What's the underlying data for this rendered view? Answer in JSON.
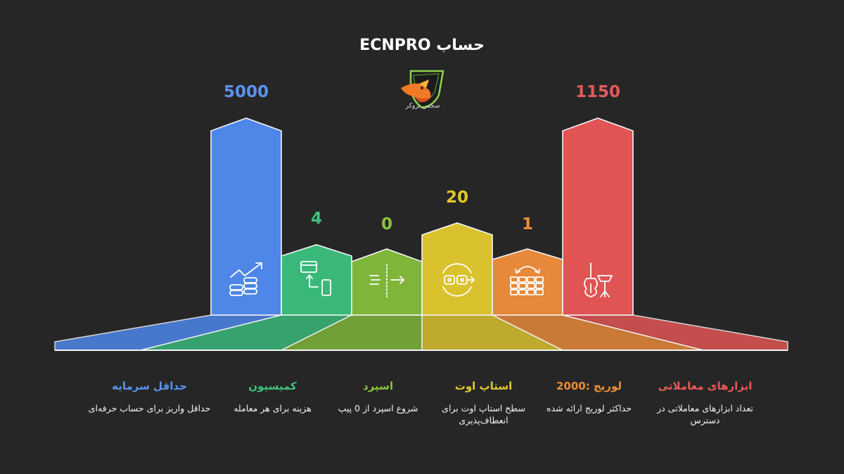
{
  "title": "حساب ECNPRO",
  "logo": {
    "text": "سجس بروکر",
    "icon": "fox-head-logo"
  },
  "items": [
    {
      "value": "5000",
      "color": "#4f87e8",
      "icon": "rising-coins-icon",
      "heading": "حداقل سرمایه",
      "desc": "حداقل واریز برای حساب حرفه‌ای"
    },
    {
      "value": "4",
      "color": "#3ab87a",
      "icon": "card-to-phone-icon",
      "heading": "کمیسیون",
      "desc": "هزینه برای هر معامله"
    },
    {
      "value": "0",
      "color": "#7fb63a",
      "icon": "spread-filter-icon",
      "heading": "اسپرد",
      "desc": "شروع اسپرد از 0 پیپ"
    },
    {
      "value": "20",
      "color": "#d9c22e",
      "icon": "stop-out-icon",
      "heading": "استاپ اوت",
      "desc": "سطح استاپ اوت برای انعطاف‌پذیری"
    },
    {
      "value": "1",
      "color": "#e6893a",
      "icon": "grid-swap-icon",
      "heading": "لوریج :2000",
      "desc": "حداکثر لوریج ارائه شده"
    },
    {
      "value": "1150",
      "color": "#e05454",
      "icon": "instruments-icon",
      "heading": "ابزارهای معاملاتی",
      "desc": "تعداد ابزارهای معاملاتی در دسترس"
    }
  ]
}
